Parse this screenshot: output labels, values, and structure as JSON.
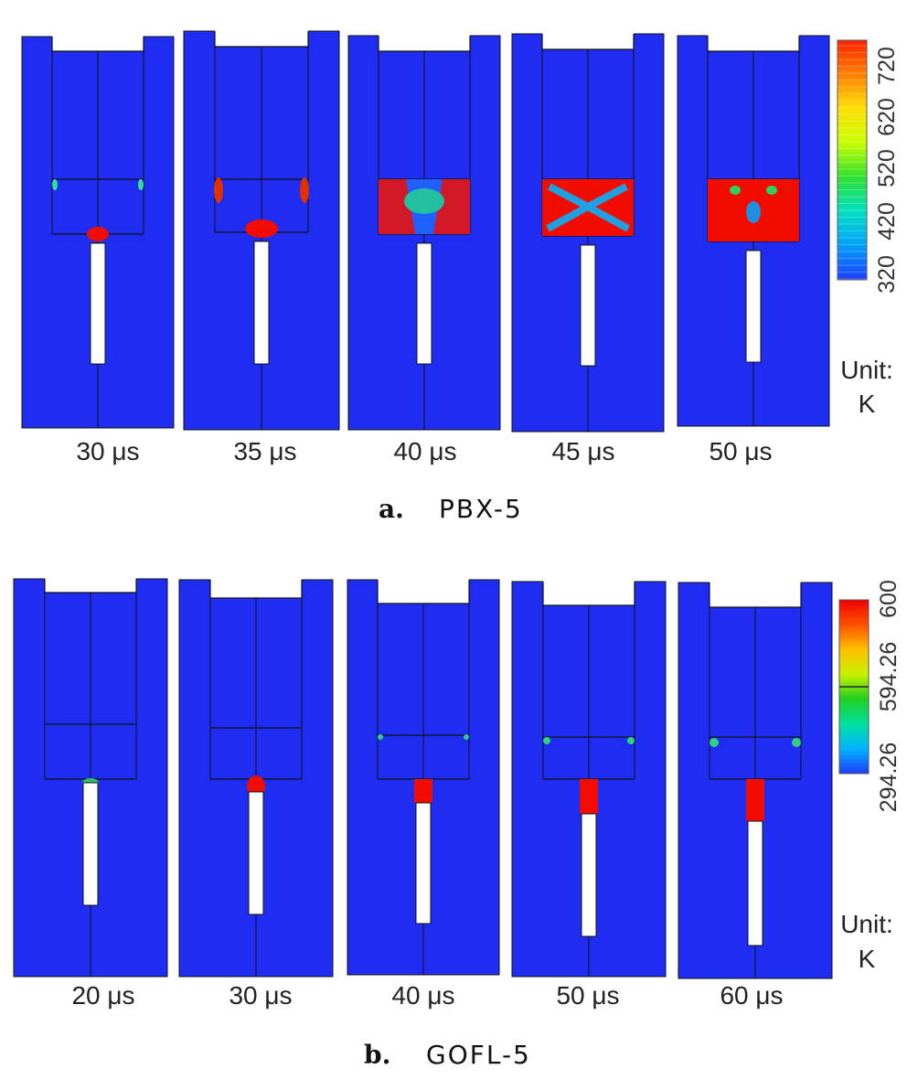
{
  "colors": {
    "background_field": "#1f2df2",
    "hot": "#f20c00",
    "hole": "#ffffff",
    "outline": "#111111"
  },
  "panels": [
    {
      "id": "a",
      "letter": "a.",
      "material": "PBX-5",
      "times": [
        "30 μs",
        "35 μs",
        "40 μs",
        "45 μs",
        "50 μs"
      ],
      "scale": {
        "ticks": [
          "320",
          "420",
          "520",
          "620",
          "720"
        ],
        "unit_label": "Unit:",
        "unit": "K",
        "gradient": [
          "#1e3cff",
          "#00a0ff",
          "#00e0c0",
          "#30e030",
          "#c8ff00",
          "#ffe000",
          "#ff8000",
          "#ff2000"
        ]
      }
    },
    {
      "id": "b",
      "letter": "b.",
      "material": "GOFL-5",
      "times": [
        "20 μs",
        "30 μs",
        "40 μs",
        "50 μs",
        "60 μs"
      ],
      "scale": {
        "ticks": [
          "294.26",
          "594.26",
          "600"
        ],
        "unit_label": "Unit:",
        "unit": "K",
        "gradient": [
          "#1e3cff",
          "#00b4ff",
          "#00e0a0",
          "#20d020",
          "#c8f000",
          "#ffc000",
          "#ff5000",
          "#f00000"
        ]
      }
    }
  ]
}
